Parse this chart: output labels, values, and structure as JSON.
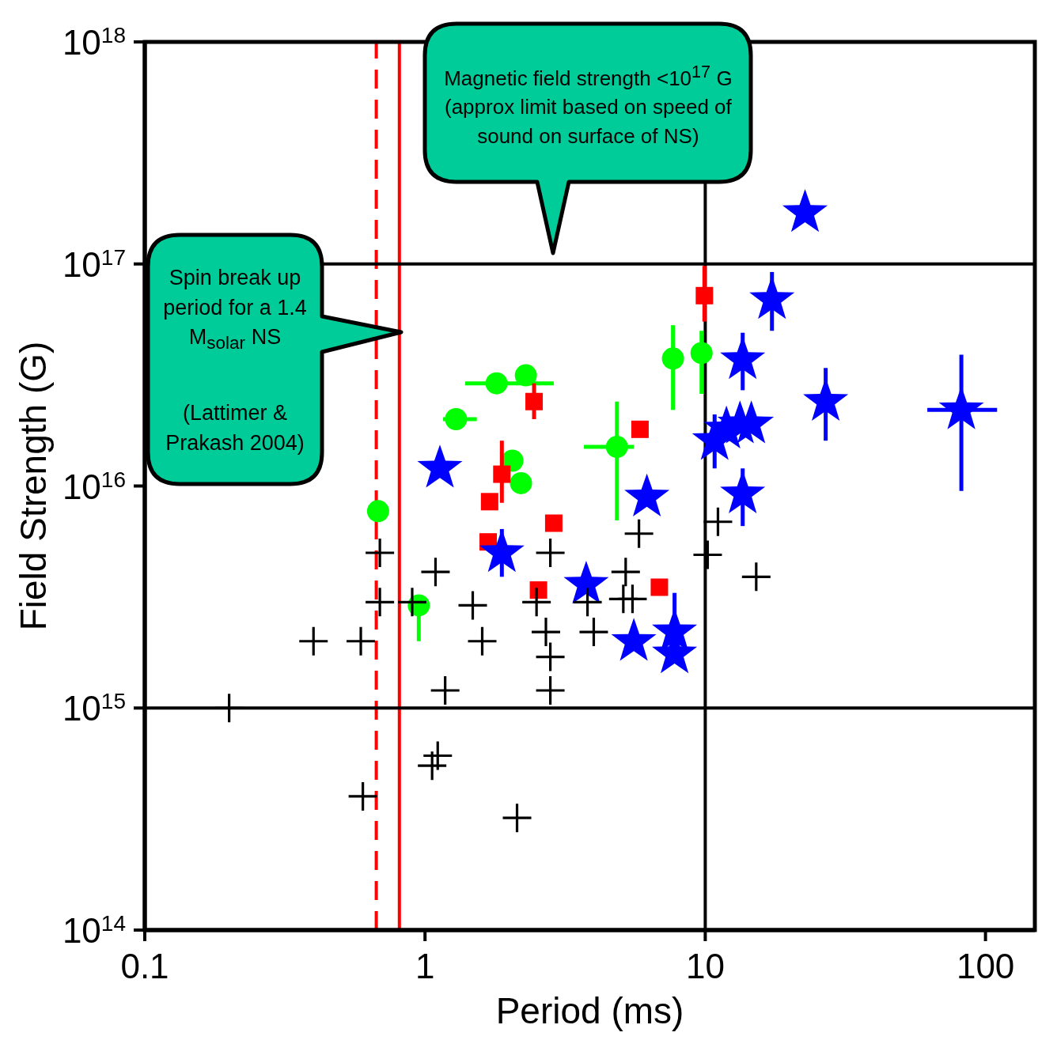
{
  "chart_data": {
    "type": "scatter",
    "xlabel": "Period (ms)",
    "ylabel": "Field Strength (G)",
    "log": "xy",
    "xlim": [
      0.1,
      150
    ],
    "ylim": [
      100000000000000.0,
      1e+18
    ],
    "xticks": [
      0.1,
      1,
      10,
      100
    ],
    "yticks": [
      {
        "value": 100000000000000.0,
        "label": "10$^{14}$"
      },
      {
        "value": 1000000000000000.0,
        "label": "10$^{15}$"
      },
      {
        "value": 1e+16,
        "label": "10$^{16}$"
      },
      {
        "value": 1e+17,
        "label": "10$^{17}$"
      },
      {
        "value": 1e+18,
        "label": "10$^{18}$"
      }
    ],
    "ref_lines": [
      {
        "axis": "x",
        "value": 0.67,
        "color": "#ff0000",
        "line_style": "dashed"
      },
      {
        "axis": "x",
        "value": 0.81,
        "color": "#ff0000",
        "line_style": "solid"
      },
      {
        "axis": "x",
        "value": 10,
        "color": "#000000",
        "line_style": "solid"
      },
      {
        "axis": "y",
        "value": 1e+17,
        "color": "#000000",
        "line_style": "solid"
      },
      {
        "axis": "y",
        "value": 1000000000000000.0,
        "color": "#000000",
        "line_style": "solid"
      }
    ],
    "annotations": [
      "Magnetic field strength <10$^{17}$ G (approx limit based on speed of sound on surface of NS)",
      "Spin break up period for a 1.4 M$_{solar}$ NS",
      "(Lattimer & Prakash 2004)"
    ],
    "series": [
      {
        "color": "#00ff00",
        "marker": "circle",
        "x": [
          0.68,
          1.29,
          2.29,
          2.05,
          4.84,
          7.67
        ],
        "values": [
          7700000000000000.0,
          2e+16,
          3.15e+16,
          1.3e+16,
          1.5e+16,
          3.75e+16
        ],
        "errors": [
          null,
          null,
          null,
          null,
          [
            7000000000000000.0,
            2.4e+16
          ],
          [
            2.2e+16,
            5.3e+16
          ]
        ],
        "xerrors": [
          null,
          [
            1.16,
            1.53
          ],
          null,
          null,
          [
            3.69,
            5.56
          ],
          null
        ]
      },
      {
        "color": "#00ff00",
        "marker": "circle",
        "x": [
          1.8,
          2.2,
          0.95,
          9.7
        ],
        "values": [
          2.9e+16,
          1.03e+16,
          2900000000000000.0,
          3.97e+16
        ],
        "errors": [
          null,
          null,
          [
            2000000000000000.0,
            2900000000000000.0
          ],
          [
            2.6e+16,
            5e+16
          ]
        ],
        "xerrors": [
          [
            1.39,
            2.88
          ],
          null,
          null,
          null
        ]
      },
      {
        "color": "#ff0000",
        "marker": "square",
        "x": [
          2.45,
          1.88,
          1.7,
          2.54,
          5.85,
          6.86
        ],
        "values": [
          2.4e+16,
          1.13e+16,
          8500000000000000.0,
          3400000000000000.0,
          1.8e+16,
          3500000000000000.0
        ],
        "errors": [
          [
            2e+16,
            2.9e+16
          ],
          [
            8400000000000000.0,
            1.6e+16
          ],
          null,
          null,
          null,
          null
        ]
      },
      {
        "color": "#ff0000",
        "marker": "square",
        "x": [
          1.68,
          2.88,
          9.93
        ],
        "values": [
          5600000000000000.0,
          6800000000000000.0,
          7.2e+16
        ],
        "errors": [
          null,
          null,
          [
            5.5e+16,
            9.8e+16
          ]
        ]
      },
      {
        "color": "#0000ff",
        "marker": "star",
        "x": [
          1.13,
          3.76,
          6.19,
          7.77,
          10.8,
          13.6,
          17.3,
          22.7,
          13.6,
          26.9,
          11.9
        ],
        "values": [
          1.2e+16,
          3600000000000000.0,
          8900000000000000.0,
          2200000000000000.0,
          1.6e+16,
          3.7e+16,
          6.9e+16,
          1.7e+17,
          9200000000000000.0,
          2.4e+16,
          1.8e+16
        ],
        "errors": [
          null,
          null,
          null,
          [
            2200000000000000.0,
            3300000000000000.0
          ],
          [
            1.2e+16,
            2.1e+16
          ],
          [
            2.7e+16,
            4.9e+16
          ],
          [
            5e+16,
            9.2e+16
          ],
          null,
          [
            6600000000000000.0,
            1.2e+16
          ],
          [
            1.6e+16,
            3.4e+16
          ],
          null
        ]
      },
      {
        "color": "#0000ff",
        "marker": "star",
        "x": [
          1.88,
          5.56,
          7.77,
          13.3,
          14.6,
          82
        ],
        "values": [
          5000000000000000.0,
          1990000000000000.0,
          1750000000000000.0,
          1.9e+16,
          1.9e+16,
          2.2e+16
        ],
        "errors": [
          [
            3900000000000000.0,
            6400000000000000.0
          ],
          null,
          null,
          null,
          null,
          [
            9500000000000000.0,
            3.9e+16
          ]
        ],
        "xerrors": [
          null,
          null,
          null,
          null,
          null,
          [
            62,
            110
          ]
        ]
      },
      {
        "color": "#000000",
        "marker": "cross",
        "x": [
          0.2,
          0.4,
          0.59,
          0.69,
          0.69,
          0.9,
          1.09,
          1.48,
          1.6,
          1.18,
          2.8,
          2.5,
          2.7,
          2.8,
          2.8,
          3.8,
          4.0,
          5.2,
          5.1,
          5.5,
          5.8,
          11.1,
          10.2,
          15.2,
          0.6,
          1.06,
          1.11,
          2.13
        ],
        "values": [
          1000000000000000.0,
          2000000000000000.0,
          2000000000000000.0,
          5000000000000000.0,
          3000000000000000.0,
          3000000000000000.0,
          4100000000000000.0,
          2900000000000000.0,
          2000000000000000.0,
          1200000000000000.0,
          5000000000000000.0,
          3000000000000000.0,
          2200000000000000.0,
          1700000000000000.0,
          1200000000000000.0,
          3000000000000000.0,
          2200000000000000.0,
          4100000000000000.0,
          3100000000000000.0,
          3100000000000000.0,
          6100000000000000.0,
          6900000000000000.0,
          4900000000000000.0,
          3900000000000000.0,
          400000000000000.0,
          550000000000000.0,
          610000000000000.0,
          320000000000000.0
        ]
      }
    ]
  }
}
